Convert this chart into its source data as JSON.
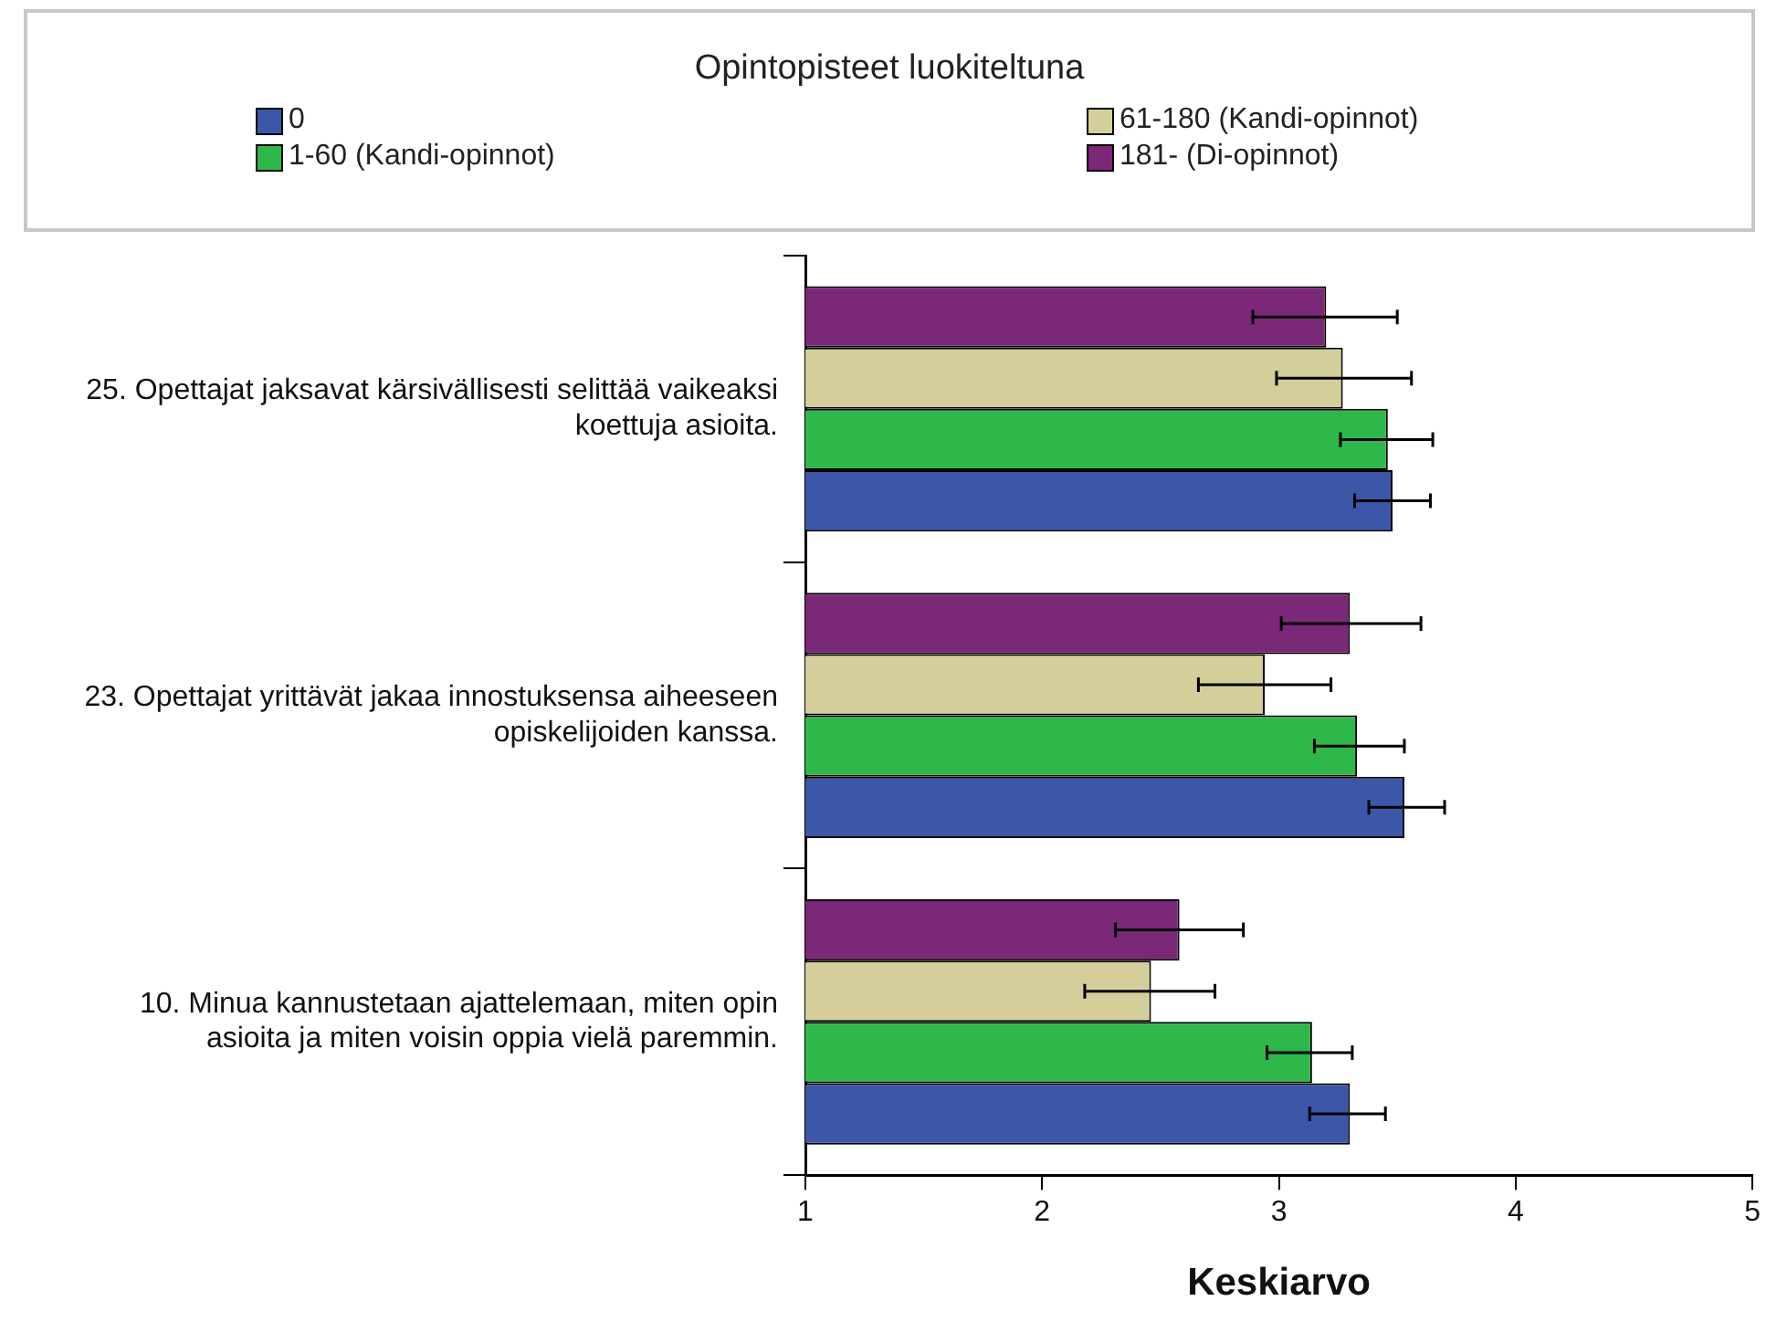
{
  "chart_data": {
    "type": "bar",
    "orientation": "horizontal",
    "legend_title": "Opintopisteet luokiteltuna",
    "legend": "top",
    "grid": false,
    "xlabel": "Keskiarvo",
    "categories": [
      "25. Opettajat jaksavat kärsivällisesti selittää vaikeaksi koettuja asioita.",
      "23. Opettajat yrittävät jakaa innostuksensa aiheeseen opiskelijoiden kanssa.",
      "10. Minua kannustetaan ajattelemaan, miten opin asioita ja miten voisin oppia vielä paremmin."
    ],
    "series": [
      {
        "name": "0",
        "color": "#3c56a8",
        "values": [
          3.48,
          3.53,
          3.3
        ],
        "errors": [
          [
            3.32,
            3.64
          ],
          [
            3.38,
            3.7
          ],
          [
            3.13,
            3.45
          ]
        ]
      },
      {
        "name": "1-60 (Kandi-opinnot)",
        "color": "#2fb84a",
        "values": [
          3.46,
          3.33,
          3.14
        ],
        "errors": [
          [
            3.26,
            3.65
          ],
          [
            3.15,
            3.53
          ],
          [
            2.95,
            3.31
          ]
        ]
      },
      {
        "name": "61-180 (Kandi-opinnot)",
        "color": "#d4cf9a",
        "values": [
          3.27,
          2.94,
          2.46
        ],
        "errors": [
          [
            2.99,
            3.56
          ],
          [
            2.66,
            3.22
          ],
          [
            2.18,
            2.73
          ]
        ]
      },
      {
        "name": "181-  (Di-opinnot)",
        "color": "#7b2878",
        "values": [
          3.2,
          3.3,
          2.58
        ],
        "errors": [
          [
            2.89,
            3.5
          ],
          [
            3.01,
            3.6
          ],
          [
            2.31,
            2.85
          ]
        ]
      }
    ],
    "xlim": [
      1,
      5
    ],
    "xticks": [
      1,
      2,
      3,
      4,
      5
    ]
  }
}
